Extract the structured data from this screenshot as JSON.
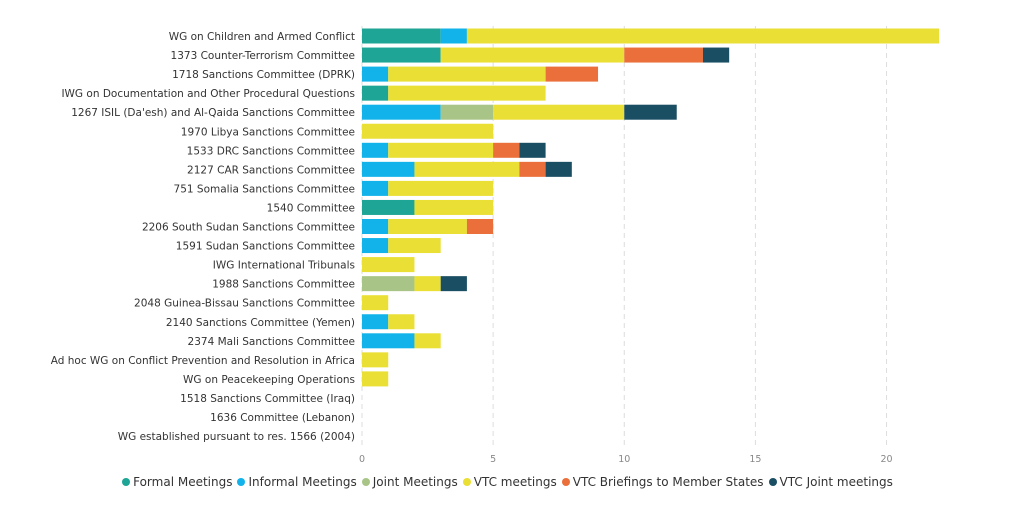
{
  "chart_data": {
    "type": "bar",
    "orientation": "horizontal",
    "stacked": true,
    "title": "",
    "xlabel": "",
    "ylabel": "",
    "xlim": [
      0,
      22
    ],
    "x_ticks": [
      0,
      5,
      10,
      15,
      20
    ],
    "grid": "vertical dashed",
    "legend_position": "bottom",
    "categories": [
      "WG on Children and Armed Conflict",
      "1373 Counter-Terrorism Committee",
      "1718 Sanctions Committee (DPRK)",
      "IWG on Documentation and Other Procedural Questions",
      "1267 ISIL (Da'esh) and Al-Qaida Sanctions Committee",
      "1970 Libya Sanctions Committee",
      "1533 DRC Sanctions Committee",
      "2127 CAR Sanctions Committee",
      "751 Somalia Sanctions Committee",
      "1540 Committee",
      "2206 South Sudan Sanctions Committee",
      "1591 Sudan Sanctions Committee",
      "IWG International Tribunals",
      "1988 Sanctions Committee",
      "2048 Guinea-Bissau Sanctions Committee",
      "2140 Sanctions Committee (Yemen)",
      "2374 Mali Sanctions Committee",
      "Ad hoc WG on Conflict Prevention and Resolution in Africa",
      "WG on Peacekeeping Operations",
      "1518 Sanctions Committee (Iraq)",
      "1636 Committee (Lebanon)",
      "WG established pursuant to res. 1566 (2004)"
    ],
    "series": [
      {
        "name": "Formal Meetings",
        "color": "#1fa596",
        "values": [
          3,
          3,
          0,
          1,
          0,
          0,
          0,
          0,
          0,
          2,
          0,
          0,
          0,
          0,
          0,
          0,
          0,
          0,
          0,
          0,
          0,
          0
        ]
      },
      {
        "name": "Informal Meetings",
        "color": "#12b3ea",
        "values": [
          1,
          0,
          1,
          0,
          3,
          0,
          1,
          2,
          1,
          0,
          1,
          1,
          0,
          0,
          0,
          1,
          2,
          0,
          0,
          0,
          0,
          0
        ]
      },
      {
        "name": "Joint Meetings",
        "color": "#a8c587",
        "values": [
          0,
          0,
          0,
          0,
          2,
          0,
          0,
          0,
          0,
          0,
          0,
          0,
          0,
          2,
          0,
          0,
          0,
          0,
          0,
          0,
          0,
          0
        ]
      },
      {
        "name": "VTC meetings",
        "color": "#eadf35",
        "values": [
          18,
          7,
          6,
          6,
          5,
          5,
          4,
          4,
          4,
          3,
          3,
          2,
          2,
          1,
          1,
          1,
          1,
          1,
          1,
          0,
          0,
          0
        ]
      },
      {
        "name": "VTC Briefings to Member States",
        "color": "#ea6f3b",
        "values": [
          0,
          3,
          2,
          0,
          0,
          0,
          1,
          1,
          0,
          0,
          1,
          0,
          0,
          0,
          0,
          0,
          0,
          0,
          0,
          0,
          0,
          0
        ]
      },
      {
        "name": "VTC Joint meetings",
        "color": "#1a4e63",
        "values": [
          0,
          1,
          0,
          0,
          2,
          0,
          1,
          1,
          0,
          0,
          0,
          0,
          0,
          1,
          0,
          0,
          0,
          0,
          0,
          0,
          0,
          0
        ]
      }
    ]
  }
}
